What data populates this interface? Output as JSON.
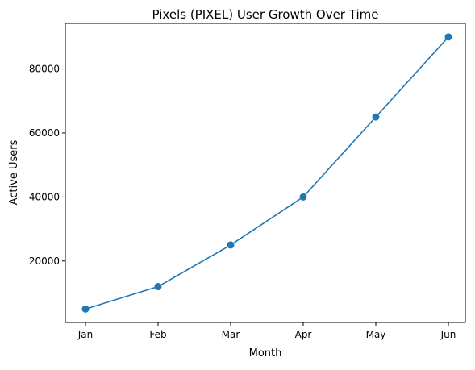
{
  "chart_data": {
    "type": "line",
    "title": "Pixels (PIXEL) User Growth Over Time",
    "xlabel": "Month",
    "ylabel": "Active Users",
    "categories": [
      "Jan",
      "Feb",
      "Mar",
      "Apr",
      "May",
      "Jun"
    ],
    "series": [
      {
        "values": [
          5000,
          12000,
          25000,
          40000,
          65000,
          90000
        ],
        "color": "#1f77b4",
        "marker": "circle"
      }
    ],
    "ylim": [
      800,
      94250
    ],
    "yticks": [
      20000,
      40000,
      60000,
      80000
    ],
    "ytick_labels": [
      "20000",
      "40000",
      "60000",
      "80000"
    ],
    "grid": false,
    "legend": "none"
  }
}
